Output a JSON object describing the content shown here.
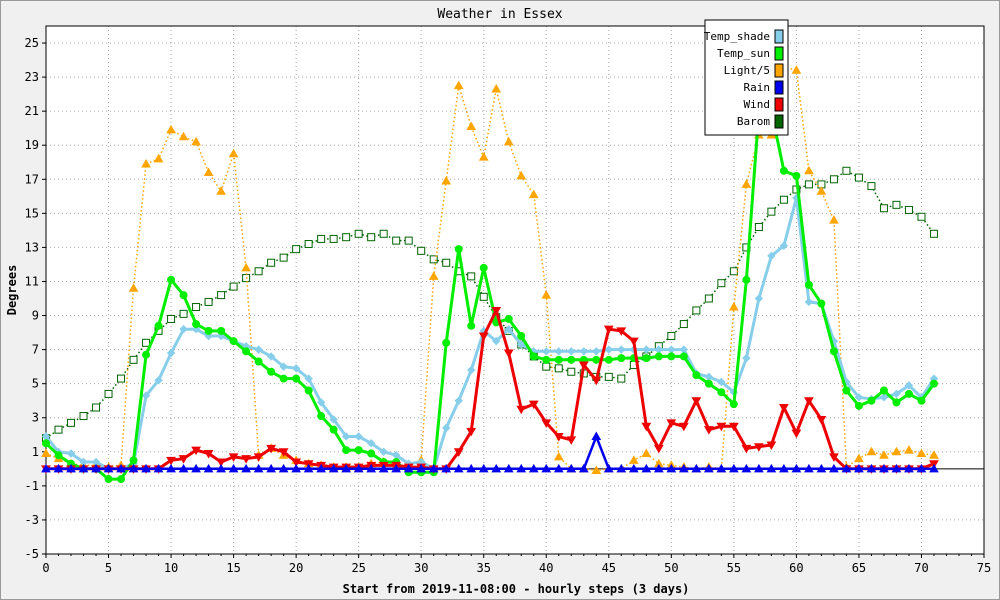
{
  "chart_data": {
    "type": "line",
    "title": "Weather in Essex",
    "xlabel": "Start from 2019-11-08:00 - hourly steps (3 days)",
    "ylabel": "Degrees",
    "xlim": [
      0,
      75
    ],
    "ylim": [
      -5,
      26
    ],
    "x_ticks": [
      "0",
      "5",
      "10",
      "15",
      "20",
      "25",
      "30",
      "35",
      "40",
      "45",
      "50",
      "55",
      "60",
      "65",
      "70",
      "75"
    ],
    "y_ticks": [
      "-5",
      "-3",
      "-1",
      "1",
      "3",
      "5",
      "7",
      "9",
      "11",
      "13",
      "15",
      "17",
      "19",
      "21",
      "23",
      "25"
    ],
    "grid": true,
    "legend_position": "top-right",
    "series": [
      {
        "name": "Temp_shade",
        "color": "#87ceeb",
        "marker": "diamond",
        "style": "solid",
        "width": 3,
        "values": [
          1.9,
          1.0,
          0.9,
          0.4,
          0.4,
          0.0,
          0.0,
          0.3,
          4.3,
          5.2,
          6.8,
          8.2,
          8.2,
          7.8,
          7.8,
          7.5,
          7.2,
          7.0,
          6.6,
          6.0,
          5.9,
          5.3,
          3.9,
          2.9,
          1.9,
          1.9,
          1.5,
          1.0,
          0.8,
          0.3,
          0.4,
          0.0,
          2.4,
          4.0,
          5.8,
          8.1,
          7.5,
          8.2,
          7.3,
          6.9,
          6.9,
          6.9,
          6.9,
          6.9,
          6.9,
          7.0,
          7.0,
          7.0,
          7.0,
          7.0,
          7.0,
          7.0,
          5.6,
          5.4,
          5.1,
          4.5,
          6.5,
          10.0,
          12.5,
          13.1,
          15.9,
          9.8,
          9.7,
          7.5,
          5.1,
          4.2,
          4.1,
          4.2,
          4.4,
          4.9,
          4.2,
          5.3
        ]
      },
      {
        "name": "Temp_sun",
        "color": "#00ee00",
        "marker": "circle",
        "style": "solid",
        "width": 3,
        "values": [
          1.5,
          0.8,
          0.3,
          0.0,
          0.0,
          -0.6,
          -0.6,
          0.5,
          6.7,
          8.4,
          11.1,
          10.2,
          8.5,
          8.1,
          8.1,
          7.5,
          6.9,
          6.3,
          5.7,
          5.3,
          5.3,
          4.6,
          3.1,
          2.3,
          1.1,
          1.1,
          0.9,
          0.4,
          0.4,
          -0.2,
          -0.2,
          -0.2,
          7.4,
          12.9,
          8.4,
          11.8,
          8.6,
          8.8,
          7.8,
          6.6,
          6.4,
          6.4,
          6.4,
          6.4,
          6.4,
          6.4,
          6.5,
          6.5,
          6.5,
          6.6,
          6.6,
          6.6,
          5.5,
          5.0,
          4.5,
          3.8,
          11.1,
          21.0,
          21.0,
          17.5,
          17.2,
          10.8,
          9.7,
          6.9,
          4.6,
          3.7,
          4.0,
          4.6,
          3.9,
          4.4,
          4.0,
          5.0
        ]
      },
      {
        "name": "Light/5",
        "color": "#ffa500",
        "marker": "triangle-up",
        "style": "dotted",
        "width": 1.5,
        "values": [
          0.9,
          0.6,
          0.3,
          0.2,
          0.2,
          0.1,
          0.2,
          10.6,
          17.9,
          18.2,
          19.9,
          19.5,
          19.2,
          17.4,
          16.3,
          18.5,
          11.8,
          0.8,
          1.2,
          0.8,
          0.5,
          0.3,
          0.2,
          0.1,
          0.1,
          0.1,
          0.3,
          0.4,
          0.2,
          0.2,
          0.5,
          11.3,
          16.9,
          22.5,
          20.1,
          18.3,
          22.3,
          19.2,
          17.2,
          16.1,
          10.2,
          0.7,
          0.0,
          0.0,
          -0.1,
          0.0,
          0.0,
          0.5,
          0.9,
          0.3,
          0.2,
          0.1,
          0.0,
          0.1,
          0.0,
          9.5,
          16.7,
          19.6,
          19.6,
          23.6,
          23.4,
          17.5,
          16.3,
          14.6,
          0.1,
          0.6,
          1.0,
          0.8,
          1.0,
          1.1,
          0.9,
          0.8
        ]
      },
      {
        "name": "Rain",
        "color": "#0000ee",
        "marker": "triangle-up",
        "style": "solid",
        "width": 2.5,
        "values": [
          0,
          0,
          0,
          0,
          0,
          0,
          0,
          0,
          0,
          0,
          0,
          0,
          0,
          0,
          0,
          0,
          0,
          0,
          0,
          0,
          0,
          0,
          0,
          0,
          0,
          0,
          0,
          0,
          0,
          0,
          0,
          0,
          0,
          0,
          0,
          0,
          0,
          0,
          0,
          0,
          0,
          0,
          0,
          0,
          1.9,
          0,
          0,
          0,
          0,
          0,
          0,
          0,
          0,
          0,
          0,
          0,
          0,
          0,
          0,
          0,
          0,
          0,
          0,
          0,
          0,
          0,
          0,
          0,
          0,
          0,
          0,
          0
        ]
      },
      {
        "name": "Wind",
        "color": "#ee0000",
        "marker": "triangle-down",
        "style": "solid",
        "width": 3,
        "values": [
          0.0,
          0.0,
          0.0,
          0.0,
          0.0,
          0.0,
          0.0,
          0.0,
          0.0,
          0.0,
          0.5,
          0.6,
          1.1,
          0.9,
          0.4,
          0.7,
          0.6,
          0.7,
          1.2,
          1.0,
          0.4,
          0.3,
          0.2,
          0.1,
          0.1,
          0.1,
          0.2,
          0.2,
          0.2,
          0.1,
          0.1,
          0.0,
          0.0,
          1.0,
          2.2,
          7.8,
          9.3,
          6.8,
          3.5,
          3.8,
          2.7,
          1.9,
          1.7,
          6.1,
          5.2,
          8.2,
          8.1,
          7.5,
          2.5,
          1.2,
          2.7,
          2.5,
          4.0,
          2.3,
          2.5,
          2.5,
          1.2,
          1.3,
          1.4,
          3.6,
          2.1,
          4.0,
          2.9,
          0.7,
          0.0,
          0.0,
          0.0,
          0.0,
          0.0,
          0.0,
          0.0,
          0.3
        ]
      },
      {
        "name": "Barom",
        "color": "#006400",
        "marker": "square",
        "style": "dotted",
        "width": 1.5,
        "values": [
          1.8,
          2.3,
          2.7,
          3.1,
          3.6,
          4.4,
          5.3,
          6.4,
          7.4,
          8.1,
          8.8,
          9.1,
          9.5,
          9.8,
          10.2,
          10.7,
          11.2,
          11.6,
          12.1,
          12.4,
          12.9,
          13.2,
          13.5,
          13.5,
          13.6,
          13.8,
          13.6,
          13.8,
          13.4,
          13.4,
          12.8,
          12.3,
          12.1,
          11.6,
          11.3,
          10.1,
          8.9,
          8.1,
          7.3,
          6.6,
          6.0,
          5.9,
          5.7,
          5.6,
          5.4,
          5.4,
          5.3,
          6.1,
          6.6,
          7.2,
          7.8,
          8.5,
          9.3,
          10.0,
          10.9,
          11.6,
          13.0,
          14.2,
          15.1,
          15.8,
          16.4,
          16.7,
          16.7,
          17.0,
          17.5,
          17.1,
          16.6,
          15.3,
          15.5,
          15.2,
          14.8,
          13.8
        ]
      }
    ]
  }
}
